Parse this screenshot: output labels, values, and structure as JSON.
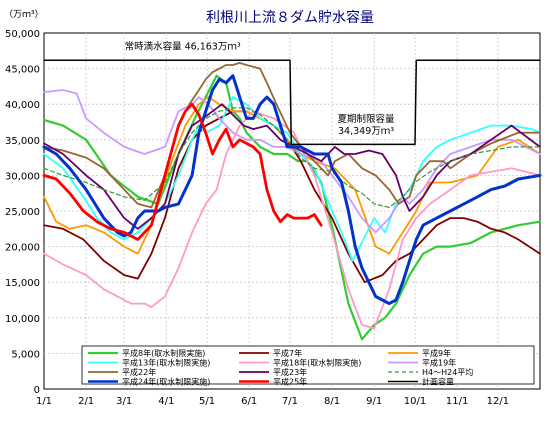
{
  "chart_data": {
    "type": "line",
    "title": "利根川上流８ダム貯水容量",
    "ylabel": "（万ｍ³）",
    "ylim": [
      0,
      50000
    ],
    "yticks": [
      0,
      5000,
      10000,
      15000,
      20000,
      25000,
      30000,
      35000,
      40000,
      45000,
      50000
    ],
    "ytick_labels": [
      "0",
      "5,000",
      "10,000",
      "15,000",
      "20,000",
      "25,000",
      "30,000",
      "35,000",
      "40,000",
      "45,000",
      "50,000"
    ],
    "xlim": [
      1,
      366
    ],
    "xticks": [
      1,
      32,
      60,
      91,
      121,
      152,
      182,
      213,
      244,
      274,
      305,
      335
    ],
    "xtick_labels": [
      "1/1",
      "2/1",
      "3/1",
      "4/1",
      "5/1",
      "6/1",
      "7/1",
      "8/1",
      "9/1",
      "10/1",
      "11/1",
      "12/1"
    ],
    "grid": true,
    "legend_position": "bottom",
    "annotations": [
      {
        "text": "常時満水容量 46,163万ｍ³",
        "x": 103,
        "y": 47700
      },
      {
        "text": "夏期制限容量",
        "x": 238,
        "y": 37500
      },
      {
        "text": "34,349万ｍ³",
        "x": 238,
        "y": 35800
      }
    ],
    "series": [
      {
        "name": "平成8年(取水制限実施)",
        "color": "#33cc33",
        "width": 2.2,
        "dash": "",
        "x": [
          1,
          15,
          32,
          50,
          70,
          85,
          100,
          112,
          120,
          128,
          135,
          140,
          145,
          150,
          160,
          170,
          180,
          188,
          195,
          205,
          214,
          225,
          235,
          244,
          252,
          260,
          270,
          280,
          290,
          300,
          315,
          330,
          350,
          366
        ],
        "y": [
          37800,
          37000,
          35000,
          30000,
          27000,
          26000,
          33000,
          38000,
          41000,
          44000,
          43000,
          39000,
          38000,
          36000,
          34000,
          33000,
          33000,
          32000,
          32000,
          29000,
          22000,
          12000,
          7000,
          9000,
          10000,
          12000,
          16000,
          19000,
          20000,
          20000,
          20500,
          22000,
          23000,
          23500
        ]
      },
      {
        "name": "平成7年",
        "color": "#800000",
        "width": 1.8,
        "dash": "",
        "x": [
          1,
          15,
          30,
          45,
          60,
          70,
          80,
          90,
          100,
          110,
          120,
          130,
          140,
          150,
          160,
          170,
          180,
          190,
          200,
          213,
          225,
          237,
          250,
          260,
          270,
          280,
          290,
          300,
          310,
          320,
          330,
          340,
          350,
          366
        ],
        "y": [
          23000,
          22500,
          21000,
          18000,
          16000,
          15500,
          19000,
          24000,
          31000,
          35000,
          37000,
          38000,
          39000,
          39000,
          38000,
          37000,
          35000,
          32000,
          28000,
          24000,
          19000,
          15000,
          16000,
          18000,
          19000,
          21000,
          23000,
          24000,
          24000,
          23500,
          22500,
          22000,
          21000,
          19000
        ]
      },
      {
        "name": "平成9年",
        "color": "#ff9900",
        "width": 1.8,
        "dash": "",
        "x": [
          1,
          10,
          20,
          32,
          45,
          60,
          70,
          80,
          88,
          95,
          105,
          115,
          122,
          130,
          140,
          150,
          160,
          170,
          180,
          190,
          200,
          215,
          230,
          245,
          255,
          265,
          275,
          285,
          300,
          320,
          335,
          350,
          366
        ],
        "y": [
          27000,
          23500,
          22500,
          23000,
          22000,
          20000,
          19000,
          23000,
          28000,
          32000,
          37000,
          40000,
          41000,
          40000,
          39000,
          39000,
          38000,
          37000,
          35000,
          33000,
          32000,
          31000,
          28000,
          20000,
          19000,
          22000,
          25000,
          29000,
          29000,
          30000,
          34000,
          35000,
          33000
        ]
      },
      {
        "name": "平成13年(取水制限実施)",
        "color": "#33ffff",
        "width": 1.8,
        "dash": "",
        "x": [
          1,
          15,
          30,
          40,
          50,
          60,
          70,
          80,
          90,
          100,
          110,
          115,
          120,
          130,
          140,
          150,
          160,
          170,
          180,
          190,
          200,
          213,
          220,
          228,
          236,
          244,
          252,
          260,
          270,
          280,
          290,
          300,
          315,
          330,
          345,
          360,
          366
        ],
        "y": [
          33000,
          31000,
          27000,
          24000,
          22000,
          21000,
          22000,
          24000,
          26000,
          30000,
          35000,
          37000,
          36000,
          37000,
          41000,
          40000,
          38000,
          37000,
          36000,
          33000,
          31000,
          25000,
          22000,
          18000,
          21000,
          24000,
          22000,
          26000,
          28000,
          32000,
          34000,
          35000,
          36000,
          37000,
          37000,
          36500,
          36000
        ]
      },
      {
        "name": "平成18年(取水制限実施)",
        "color": "#ff99cc",
        "width": 1.8,
        "dash": "",
        "x": [
          1,
          15,
          32,
          45,
          55,
          65,
          75,
          80,
          90,
          100,
          110,
          120,
          128,
          135,
          145,
          155,
          170,
          185,
          200,
          213,
          225,
          235,
          244,
          255,
          265,
          275,
          285,
          300,
          315,
          330,
          345,
          366
        ],
        "y": [
          19000,
          17500,
          16000,
          14000,
          13000,
          12000,
          12000,
          11500,
          13000,
          17000,
          22000,
          26000,
          28000,
          33000,
          37000,
          39000,
          38000,
          36000,
          30000,
          22000,
          14000,
          9000,
          8500,
          14000,
          21000,
          24000,
          26000,
          28000,
          30000,
          30500,
          31000,
          30000
        ]
      },
      {
        "name": "平成19年",
        "color": "#cc99ff",
        "width": 1.8,
        "dash": "",
        "x": [
          1,
          15,
          25,
          32,
          45,
          60,
          75,
          90,
          100,
          110,
          115,
          122,
          130,
          140,
          150,
          160,
          170,
          180,
          190,
          205,
          213,
          225,
          235,
          245,
          255,
          265,
          270,
          280,
          290,
          300,
          315,
          330,
          345,
          366
        ],
        "y": [
          41700,
          42000,
          41500,
          38000,
          36000,
          34000,
          33000,
          34000,
          39000,
          40000,
          41000,
          40000,
          38000,
          36000,
          35000,
          35000,
          34000,
          34000,
          33000,
          32000,
          30000,
          27000,
          24000,
          22000,
          24000,
          27000,
          26000,
          28000,
          31000,
          33000,
          34000,
          35000,
          35000,
          33000
        ]
      },
      {
        "name": "平成22年",
        "color": "#996633",
        "width": 1.8,
        "dash": "",
        "x": [
          1,
          15,
          32,
          45,
          60,
          70,
          80,
          90,
          100,
          108,
          115,
          120,
          125,
          130,
          135,
          140,
          145,
          150,
          160,
          165,
          172,
          182,
          190,
          200,
          210,
          215,
          225,
          235,
          245,
          255,
          262,
          270,
          275,
          285,
          295,
          300,
          315,
          330,
          350,
          366
        ],
        "y": [
          34000,
          33500,
          32500,
          31000,
          28000,
          26000,
          25500,
          30000,
          37000,
          40000,
          42000,
          43500,
          44500,
          45000,
          45500,
          45500,
          45800,
          45500,
          45000,
          43000,
          40000,
          36000,
          34000,
          32000,
          30000,
          32000,
          33000,
          31000,
          30000,
          28000,
          26000,
          27000,
          30000,
          32000,
          32000,
          31000,
          33000,
          34500,
          36000,
          36000
        ]
      },
      {
        "name": "平成23年",
        "color": "#660066",
        "width": 1.8,
        "dash": "",
        "x": [
          1,
          15,
          32,
          45,
          60,
          70,
          80,
          90,
          100,
          110,
          118,
          125,
          132,
          140,
          148,
          155,
          165,
          175,
          185,
          195,
          205,
          215,
          222,
          230,
          240,
          250,
          260,
          265,
          270,
          280,
          290,
          300,
          315,
          330,
          345,
          366
        ],
        "y": [
          34500,
          33000,
          30000,
          28000,
          24000,
          22500,
          24000,
          26000,
          33000,
          37000,
          38000,
          39000,
          40000,
          38500,
          37000,
          36500,
          37000,
          35000,
          34000,
          33000,
          32000,
          34000,
          33000,
          33000,
          33500,
          33000,
          30000,
          27000,
          25000,
          27000,
          30000,
          32000,
          33000,
          35000,
          37000,
          34000
        ]
      },
      {
        "name": "H4～H24平均",
        "color": "#339933",
        "width": 1.2,
        "dash": "4 3",
        "x": [
          1,
          15,
          32,
          45,
          60,
          75,
          90,
          100,
          110,
          120,
          130,
          140,
          150,
          160,
          170,
          180,
          190,
          200,
          213,
          225,
          235,
          244,
          255,
          265,
          274,
          285,
          300,
          315,
          330,
          345,
          366
        ],
        "y": [
          31000,
          30000,
          29000,
          28000,
          27000,
          26500,
          29000,
          33000,
          36000,
          38000,
          39000,
          39500,
          39500,
          38500,
          37000,
          35000,
          32500,
          31000,
          30500,
          28500,
          27500,
          26000,
          25500,
          27000,
          29000,
          30500,
          32000,
          33000,
          33500,
          34000,
          34000
        ]
      },
      {
        "name": "平成24年(取水制限実施)",
        "color": "#0033cc",
        "width": 3,
        "dash": "",
        "x": [
          1,
          10,
          20,
          32,
          45,
          55,
          60,
          65,
          70,
          75,
          80,
          85,
          90,
          100,
          110,
          115,
          120,
          125,
          130,
          135,
          140,
          145,
          150,
          155,
          160,
          165,
          170,
          180,
          190,
          200,
          210,
          213,
          220,
          225,
          230,
          235,
          240,
          245,
          250,
          255,
          260,
          265,
          270,
          275,
          280,
          290,
          300,
          310,
          320,
          330,
          340,
          350,
          360,
          366
        ],
        "y": [
          34000,
          33000,
          31000,
          28000,
          24000,
          22000,
          21500,
          22000,
          24000,
          25000,
          25000,
          25000,
          25500,
          26000,
          30000,
          36000,
          39000,
          42000,
          43500,
          43000,
          44000,
          41000,
          38000,
          38000,
          40000,
          41000,
          40000,
          34000,
          34000,
          33000,
          33000,
          31000,
          29000,
          25000,
          20000,
          17000,
          15000,
          13000,
          12500,
          12000,
          12500,
          15000,
          18000,
          21000,
          23000,
          24000,
          25000,
          26000,
          27000,
          28000,
          28500,
          29500,
          29800,
          30000
        ]
      },
      {
        "name": "平成25年",
        "color": "#ff0000",
        "width": 2.8,
        "dash": "",
        "x": [
          1,
          10,
          20,
          30,
          40,
          50,
          60,
          70,
          80,
          90,
          100,
          105,
          110,
          115,
          120,
          125,
          130,
          135,
          140,
          145,
          150,
          155,
          160,
          165,
          170,
          175,
          180,
          185,
          190,
          195,
          200,
          205
        ],
        "y": [
          30000,
          29500,
          27500,
          25000,
          23500,
          22500,
          22000,
          21000,
          23000,
          30000,
          37000,
          39000,
          40000,
          38500,
          36000,
          33000,
          35000,
          36500,
          34000,
          35000,
          34500,
          34000,
          33000,
          28000,
          25000,
          23500,
          24500,
          24000,
          24000,
          24000,
          24500,
          23000
        ]
      },
      {
        "name": "計画容量",
        "color": "#000000",
        "width": 1.5,
        "dash": "",
        "x": [
          1,
          182,
          183,
          274,
          275,
          366
        ],
        "y": [
          46163,
          46163,
          34349,
          34349,
          46163,
          46163
        ]
      }
    ]
  }
}
